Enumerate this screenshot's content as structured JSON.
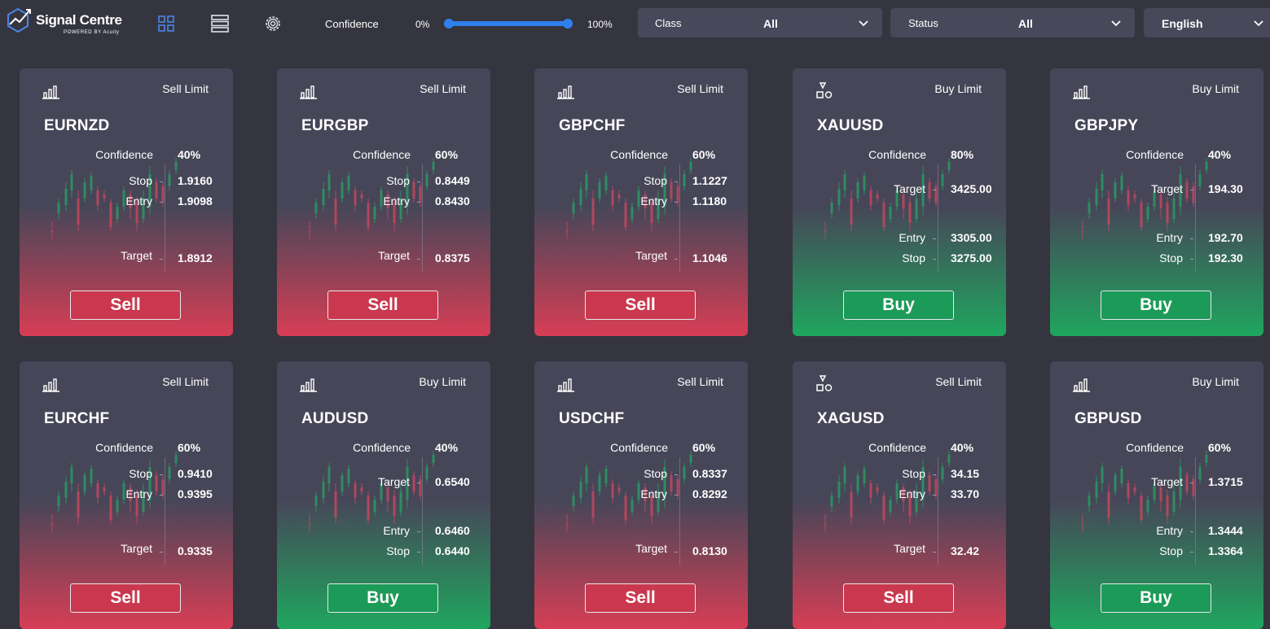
{
  "header": {
    "logo_title": "Signal Centre",
    "logo_subtitle": "POWERED BY Acuity",
    "confidence_label": "Confidence",
    "confidence_min": "0%",
    "confidence_max": "100%",
    "confidence_range": [
      0,
      100
    ],
    "class_filter": {
      "label": "Class",
      "value": "All"
    },
    "status_filter": {
      "label": "Status",
      "value": "All"
    },
    "language": "English",
    "icons": [
      "grid-view-icon",
      "list-view-icon",
      "settings-icon"
    ]
  },
  "colors": {
    "accent": "#2f80ed",
    "sell": "#d73e55",
    "buy": "#1fa65e",
    "card": "#464658",
    "background": "#35353f"
  },
  "cards": [
    {
      "symbol": "EURNZD",
      "order_type": "Sell Limit",
      "side": "sell",
      "icon": "bar-chart-icon",
      "confidence": "40%",
      "levels": [
        {
          "label": "Stop",
          "value": "1.9160"
        },
        {
          "label": "Entry",
          "value": "1.9098"
        },
        {
          "label": "Target",
          "value": "1.8912"
        }
      ],
      "button": "Sell"
    },
    {
      "symbol": "EURGBP",
      "order_type": "Sell Limit",
      "side": "sell",
      "icon": "bar-chart-icon",
      "confidence": "60%",
      "levels": [
        {
          "label": "Stop",
          "value": "0.8449"
        },
        {
          "label": "Entry",
          "value": "0.8430"
        },
        {
          "label": "Target",
          "value": "0.8375"
        }
      ],
      "button": "Sell"
    },
    {
      "symbol": "GBPCHF",
      "order_type": "Sell Limit",
      "side": "sell",
      "icon": "bar-chart-icon",
      "confidence": "60%",
      "levels": [
        {
          "label": "Stop",
          "value": "1.1227"
        },
        {
          "label": "Entry",
          "value": "1.1180"
        },
        {
          "label": "Target",
          "value": "1.1046"
        }
      ],
      "button": "Sell"
    },
    {
      "symbol": "XAUUSD",
      "order_type": "Buy Limit",
      "side": "buy",
      "icon": "shapes-icon",
      "confidence": "80%",
      "levels": [
        {
          "label": "Target",
          "value": "3425.00"
        },
        {
          "label": "Entry",
          "value": "3305.00"
        },
        {
          "label": "Stop",
          "value": "3275.00"
        }
      ],
      "button": "Buy"
    },
    {
      "symbol": "GBPJPY",
      "order_type": "Buy Limit",
      "side": "buy",
      "icon": "bar-chart-icon",
      "confidence": "40%",
      "levels": [
        {
          "label": "Target",
          "value": "194.30"
        },
        {
          "label": "Entry",
          "value": "192.70"
        },
        {
          "label": "Stop",
          "value": "192.30"
        }
      ],
      "button": "Buy"
    },
    {
      "symbol": "EURCHF",
      "order_type": "Sell Limit",
      "side": "sell",
      "icon": "bar-chart-icon",
      "confidence": "60%",
      "levels": [
        {
          "label": "Stop",
          "value": "0.9410"
        },
        {
          "label": "Entry",
          "value": "0.9395"
        },
        {
          "label": "Target",
          "value": "0.9335"
        }
      ],
      "button": "Sell"
    },
    {
      "symbol": "AUDUSD",
      "order_type": "Buy Limit",
      "side": "buy",
      "icon": "bar-chart-icon",
      "confidence": "40%",
      "levels": [
        {
          "label": "Target",
          "value": "0.6540"
        },
        {
          "label": "Entry",
          "value": "0.6460"
        },
        {
          "label": "Stop",
          "value": "0.6440"
        }
      ],
      "button": "Buy"
    },
    {
      "symbol": "USDCHF",
      "order_type": "Sell Limit",
      "side": "sell",
      "icon": "bar-chart-icon",
      "confidence": "60%",
      "levels": [
        {
          "label": "Stop",
          "value": "0.8337"
        },
        {
          "label": "Entry",
          "value": "0.8292"
        },
        {
          "label": "Target",
          "value": "0.8130"
        }
      ],
      "button": "Sell"
    },
    {
      "symbol": "XAGUSD",
      "order_type": "Sell Limit",
      "side": "sell",
      "icon": "shapes-icon",
      "confidence": "40%",
      "levels": [
        {
          "label": "Stop",
          "value": "34.15"
        },
        {
          "label": "Entry",
          "value": "33.70"
        },
        {
          "label": "Target",
          "value": "32.42"
        }
      ],
      "button": "Sell"
    },
    {
      "symbol": "GBPUSD",
      "order_type": "Buy Limit",
      "side": "buy",
      "icon": "bar-chart-icon",
      "confidence": "60%",
      "levels": [
        {
          "label": "Target",
          "value": "1.3715"
        },
        {
          "label": "Entry",
          "value": "1.3444"
        },
        {
          "label": "Stop",
          "value": "1.3364"
        }
      ],
      "button": "Buy"
    }
  ]
}
